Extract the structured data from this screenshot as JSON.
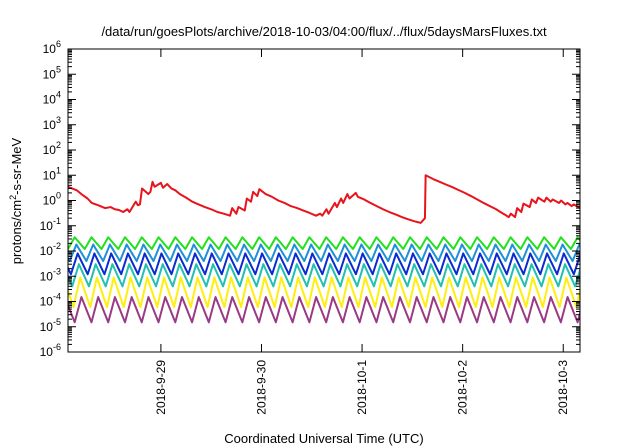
{
  "chart_data": {
    "type": "line",
    "title": "/data/run/goesPlots/archive/2018-10-03/04:00/flux/../flux/5daysMarsFluxes.txt",
    "xlabel": "Coordinated Universal Time (UTC)",
    "ylabel": {
      "base": "protons/cm",
      "sup": "2",
      "rest": "-s-sr-MeV"
    },
    "y_scale": "log",
    "ylim": [
      1e-06,
      1000000.0
    ],
    "y_ticks": [
      {
        "base": "10",
        "exp": "-6",
        "value": 1e-06
      },
      {
        "base": "10",
        "exp": "-5",
        "value": 1e-05
      },
      {
        "base": "10",
        "exp": "-4",
        "value": 0.0001
      },
      {
        "base": "10",
        "exp": "-3",
        "value": 0.001
      },
      {
        "base": "10",
        "exp": "-2",
        "value": 0.01
      },
      {
        "base": "10",
        "exp": "-1",
        "value": 0.1
      },
      {
        "base": "10",
        "exp": "0",
        "value": 1.0
      },
      {
        "base": "10",
        "exp": "1",
        "value": 10.0
      },
      {
        "base": "10",
        "exp": "2",
        "value": 100.0
      },
      {
        "base": "10",
        "exp": "3",
        "value": 1000.0
      },
      {
        "base": "10",
        "exp": "4",
        "value": 10000.0
      },
      {
        "base": "10",
        "exp": "5",
        "value": 100000.0
      },
      {
        "base": "10",
        "exp": "6",
        "value": 1000000.0
      }
    ],
    "xlim": [
      "2018-09-28 01:50",
      "2018-10-03 04:00"
    ],
    "x_ticks": [
      {
        "label": "2018-9-29",
        "value": "2018-09-29 00:00"
      },
      {
        "label": "2018-9-30",
        "value": "2018-09-30 00:00"
      },
      {
        "label": "2018-10-1",
        "value": "2018-10-01 00:00"
      },
      {
        "label": "2018-10-2",
        "value": "2018-10-02 00:00"
      },
      {
        "label": "2018-10-3",
        "value": "2018-10-03 00:00"
      }
    ],
    "grid": false,
    "series": [
      {
        "color": "#e8141c",
        "x": [
          "2018-09-28 01:50",
          "2018-09-28 04:00",
          "2018-09-28 05:00",
          "2018-09-28 06:30",
          "2018-09-28 07:30",
          "2018-09-28 09:00",
          "2018-09-28 10:40",
          "2018-09-28 12:00",
          "2018-09-28 13:00",
          "2018-09-28 14:00",
          "2018-09-28 15:00",
          "2018-09-28 16:00",
          "2018-09-28 16:30",
          "2018-09-28 18:00",
          "2018-09-28 18:30",
          "2018-09-28 19:00",
          "2018-09-28 19:30",
          "2018-09-28 21:00",
          "2018-09-28 21:30",
          "2018-09-28 22:00",
          "2018-09-28 22:30",
          "2018-09-29 00:00",
          "2018-09-29 00:30",
          "2018-09-29 01:30",
          "2018-09-29 02:30",
          "2018-09-29 03:30",
          "2018-09-29 04:30",
          "2018-09-29 06:00",
          "2018-09-29 07:30",
          "2018-09-29 09:00",
          "2018-09-29 10:30",
          "2018-09-29 12:00",
          "2018-09-29 13:30",
          "2018-09-29 15:00",
          "2018-09-29 16:30",
          "2018-09-29 17:00",
          "2018-09-29 18:00",
          "2018-09-29 18:30",
          "2018-09-29 20:00",
          "2018-09-29 20:30",
          "2018-09-29 21:30",
          "2018-09-29 22:00",
          "2018-09-29 23:00",
          "2018-09-29 23:30",
          "2018-09-30 01:00",
          "2018-09-30 02:30",
          "2018-09-30 04:00",
          "2018-09-30 05:30",
          "2018-09-30 07:00",
          "2018-09-30 08:30",
          "2018-09-30 10:00",
          "2018-09-30 11:30",
          "2018-09-30 13:00",
          "2018-09-30 14:00",
          "2018-09-30 14:30",
          "2018-09-30 15:30",
          "2018-09-30 16:00",
          "2018-09-30 17:30",
          "2018-09-30 18:00",
          "2018-09-30 19:00",
          "2018-09-30 19:30",
          "2018-09-30 20:30",
          "2018-09-30 21:00",
          "2018-09-30 22:30",
          "2018-09-30 23:00",
          "2018-10-01 00:30",
          "2018-10-01 02:00",
          "2018-10-01 03:30",
          "2018-10-01 05:00",
          "2018-10-01 06:30",
          "2018-10-01 08:00",
          "2018-10-01 09:30",
          "2018-10-01 11:00",
          "2018-10-01 12:30",
          "2018-10-01 14:00",
          "2018-10-01 15:00",
          "2018-10-01 15:10",
          "2018-10-01 17:00",
          "2018-10-01 18:30",
          "2018-10-01 20:00",
          "2018-10-01 21:30",
          "2018-10-01 23:00",
          "2018-10-02 00:30",
          "2018-10-02 02:00",
          "2018-10-02 03:30",
          "2018-10-02 05:00",
          "2018-10-02 06:30",
          "2018-10-02 08:00",
          "2018-10-02 09:00",
          "2018-10-02 10:00",
          "2018-10-02 11:00",
          "2018-10-02 11:30",
          "2018-10-02 12:30",
          "2018-10-02 13:00",
          "2018-10-02 14:00",
          "2018-10-02 14:30",
          "2018-10-02 16:00",
          "2018-10-02 16:30",
          "2018-10-02 17:30",
          "2018-10-02 18:00",
          "2018-10-02 19:30",
          "2018-10-02 20:00",
          "2018-10-02 21:00",
          "2018-10-02 21:30",
          "2018-10-02 23:00",
          "2018-10-02 23:30",
          "2018-10-03 00:30",
          "2018-10-03 01:00",
          "2018-10-03 02:00",
          "2018-10-03 02:30",
          "2018-10-03 04:00"
        ],
        "values": [
          3.5,
          2.5,
          1.8,
          1.2,
          0.8,
          0.65,
          0.5,
          0.55,
          0.45,
          0.42,
          0.35,
          0.45,
          0.35,
          0.9,
          0.65,
          0.7,
          3,
          1.8,
          2.2,
          5.5,
          3.5,
          5,
          3.2,
          4.5,
          3,
          2.5,
          1.8,
          1.3,
          0.9,
          0.7,
          0.55,
          0.45,
          0.35,
          0.3,
          0.25,
          0.5,
          0.3,
          0.55,
          0.4,
          1.2,
          0.9,
          2.2,
          1.5,
          2.8,
          1.8,
          1.4,
          1,
          0.8,
          0.6,
          0.5,
          0.4,
          0.32,
          0.25,
          0.3,
          0.25,
          0.45,
          0.3,
          0.8,
          0.55,
          1.2,
          0.8,
          1.8,
          1.2,
          2,
          1.4,
          1.1,
          0.8,
          0.6,
          0.45,
          0.35,
          0.28,
          0.22,
          0.18,
          0.15,
          0.13,
          0.2,
          10,
          7,
          5.5,
          4.3,
          3.4,
          2.6,
          2,
          1.5,
          1.1,
          0.8,
          0.6,
          0.45,
          0.35,
          0.28,
          0.22,
          0.3,
          0.22,
          0.5,
          0.35,
          0.75,
          0.55,
          1.1,
          0.8,
          1.3,
          0.9,
          1.3,
          0.9,
          1.1,
          0.8,
          1,
          0.7,
          0.8,
          0.6,
          0.7,
          0.5
        ]
      },
      {
        "color": "#22e01e",
        "sawtooth": {
          "low": 0.012,
          "high": 0.035,
          "period_hours": 4.0,
          "phase_hours": 0.0
        }
      },
      {
        "color": "#1e90d8",
        "sawtooth": {
          "low": 0.004,
          "high": 0.018,
          "period_hours": 4.0,
          "phase_hours": 0.4
        }
      },
      {
        "color": "#0b2ad0",
        "sawtooth": {
          "low": 0.0012,
          "high": 0.008,
          "period_hours": 4.0,
          "phase_hours": 0.7
        }
      },
      {
        "color": "#23c0b0",
        "sawtooth": {
          "low": 0.0004,
          "high": 0.003,
          "period_hours": 4.0,
          "phase_hours": 1.0
        }
      },
      {
        "color": "#ffee10",
        "sawtooth": {
          "low": 6e-05,
          "high": 0.0009,
          "period_hours": 4.0,
          "phase_hours": 1.3
        }
      },
      {
        "color": "#9a3a84",
        "sawtooth": {
          "low": 1.5e-05,
          "high": 0.00015,
          "period_hours": 4.0,
          "phase_hours": 1.6
        }
      }
    ]
  }
}
